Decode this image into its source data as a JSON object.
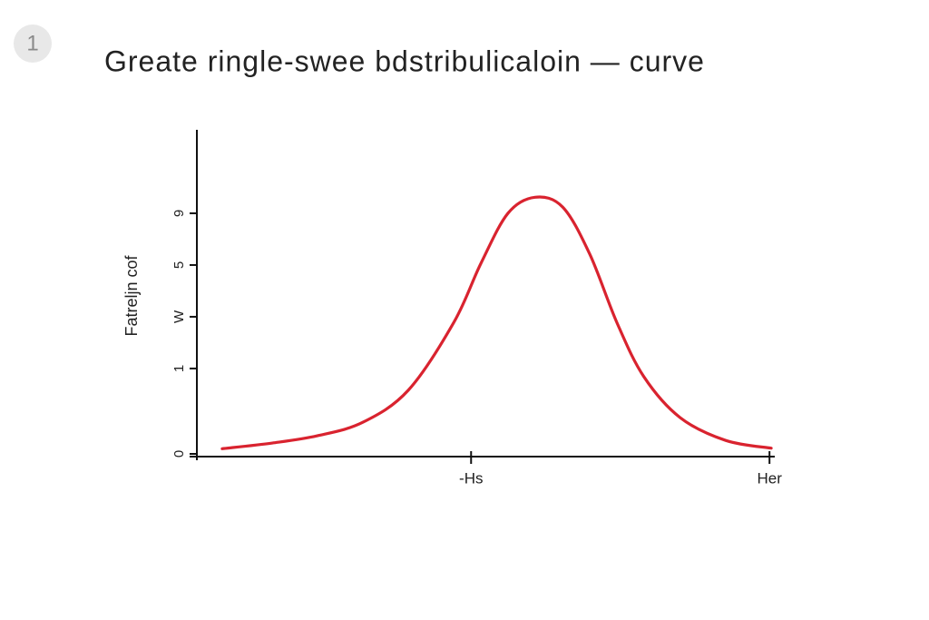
{
  "step": "1",
  "chart_data": {
    "type": "line",
    "title": "Greate ringle-swee bdstribulicaloin — curve",
    "ylabel": "Fatreljn cof",
    "x": [
      0.44,
      1.31,
      2.09,
      2.88,
      3.67,
      4.46,
      4.93,
      5.4,
      5.87,
      6.35,
      6.82,
      7.29,
      7.76,
      8.39,
      9.18,
      9.97
    ],
    "series": [
      {
        "name": null,
        "color": "#d9232f",
        "values": [
          0.1,
          0.21,
          0.35,
          0.61,
          1.23,
          2.54,
          3.68,
          4.65,
          4.96,
          4.77,
          3.86,
          2.54,
          1.49,
          0.7,
          0.26,
          0.11
        ]
      }
    ],
    "xlim": [
      0,
      10
    ],
    "xticks": [
      {
        "value": 4.76,
        "label": "-Hs"
      },
      {
        "value": 9.94,
        "label": "Her"
      }
    ],
    "ylim": [
      0,
      6.2
    ],
    "yticks": [
      0,
      {
        "value": 1.65,
        "label": "1"
      },
      {
        "value": 2.65,
        "label": "W"
      },
      {
        "value": 3.65,
        "label": "5"
      },
      {
        "value": 4.65,
        "label": "9"
      }
    ],
    "grid": false
  }
}
